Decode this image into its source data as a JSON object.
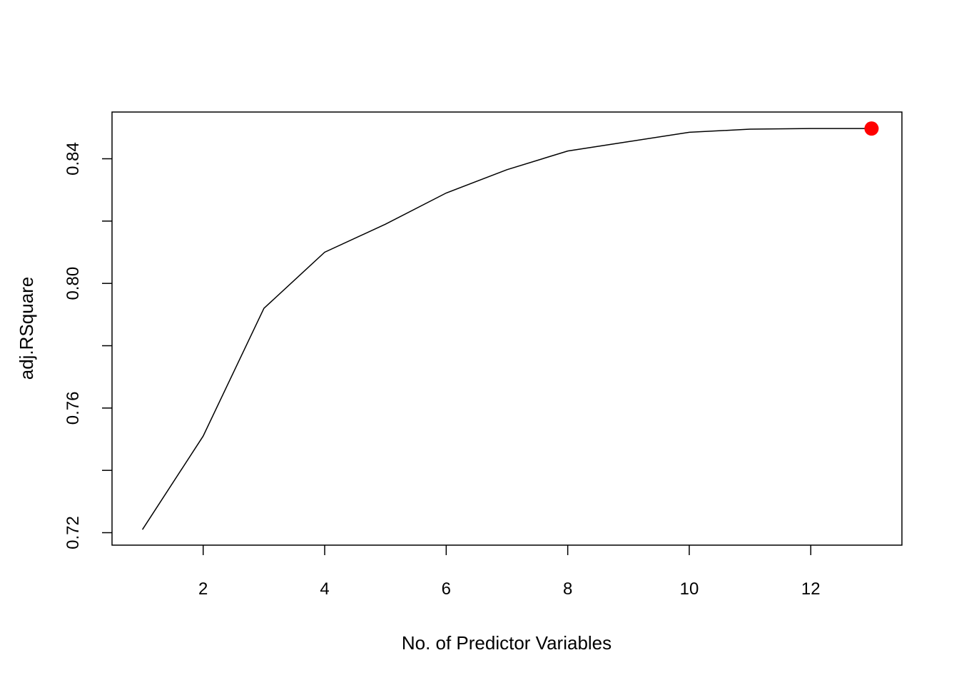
{
  "chart_data": {
    "type": "line",
    "title": "",
    "xlabel": "No. of Predictor Variables",
    "ylabel": "adj.RSquare",
    "x": [
      1,
      2,
      3,
      4,
      5,
      6,
      7,
      8,
      9,
      10,
      11,
      12,
      13
    ],
    "y": [
      0.721,
      0.751,
      0.792,
      0.81,
      0.819,
      0.829,
      0.8365,
      0.8425,
      0.8455,
      0.8485,
      0.8495,
      0.8497,
      0.8497
    ],
    "xlim": [
      0.5,
      13.5
    ],
    "ylim": [
      0.716,
      0.855
    ],
    "xticks": [
      2,
      4,
      6,
      8,
      10,
      12
    ],
    "xtick_labels": [
      "2",
      "4",
      "6",
      "8",
      "10",
      "12"
    ],
    "yticks": [
      0.72,
      0.74,
      0.76,
      0.78,
      0.8,
      0.82,
      0.84
    ],
    "ytick_labels": [
      "0.72",
      "",
      "0.76",
      "",
      "0.80",
      "",
      "0.84"
    ],
    "highlight": {
      "x": 13,
      "y": 0.8497,
      "color": "#ff0000"
    },
    "line_color": "#000000",
    "grid": false,
    "legend": "none"
  }
}
